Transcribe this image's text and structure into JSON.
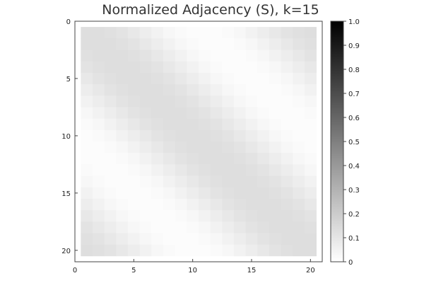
{
  "chart_data": {
    "type": "heatmap",
    "title": "Normalized Adjacency (S), k=15",
    "xlabel": "",
    "ylabel": "",
    "x_range": [
      1,
      20
    ],
    "y_range": [
      1,
      20
    ],
    "xlim": [
      0,
      21
    ],
    "ylim": [
      0,
      21
    ],
    "y_inverted": true,
    "x_ticks": [
      "0",
      "5",
      "10",
      "15",
      "20"
    ],
    "y_ticks": [
      "0",
      "5",
      "10",
      "15",
      "20"
    ],
    "colorbar": {
      "range": [
        0,
        1
      ],
      "ticks": [
        "0",
        "0.1",
        "0.2",
        "0.3",
        "0.4",
        "0.5",
        "0.6",
        "0.7",
        "0.8",
        "0.9",
        "1.0"
      ],
      "colormap": [
        "#ffffff",
        "#000000"
      ]
    },
    "value_model": "circular band along diagonal; value depends on circular distance d between row and column indices (period 20)",
    "band_values_by_distance": [
      0.13,
      0.13,
      0.12,
      0.11,
      0.09,
      0.07,
      0.05,
      0.03,
      0.02,
      0.01,
      0.01
    ],
    "grid": false
  }
}
